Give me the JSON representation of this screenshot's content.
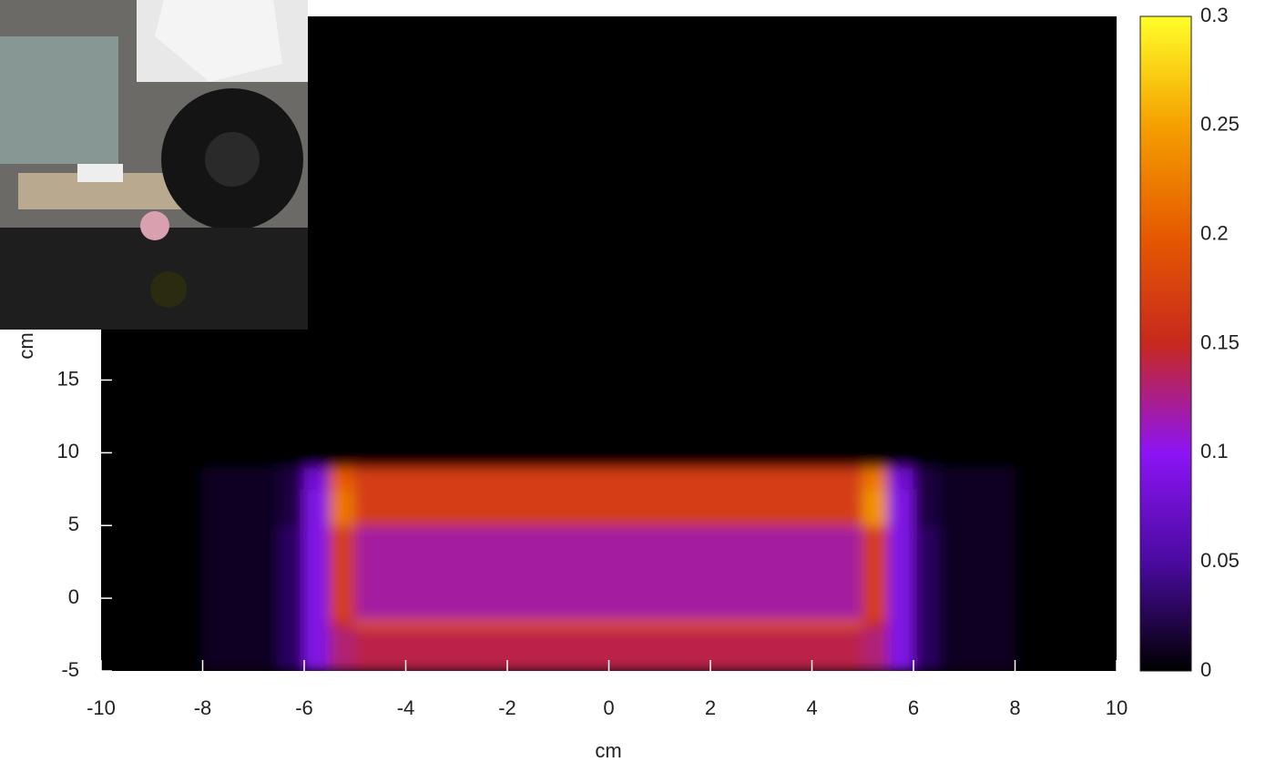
{
  "chart_data": {
    "type": "heatmap",
    "x_label": "cm",
    "y_label": "cm",
    "x": [
      -10,
      -8,
      -6.5,
      -6,
      -5.5,
      -5,
      -4,
      -3,
      -2,
      -1,
      0,
      1,
      2,
      3,
      4,
      5,
      5.5,
      6,
      6.5,
      8,
      10
    ],
    "y": [
      -5,
      -2,
      -1.5,
      5,
      7.5,
      9,
      40
    ],
    "values": [
      [
        0,
        0.01,
        0.03,
        0.09,
        0.13,
        0.14,
        0.14,
        0.14,
        0.14,
        0.14,
        0.14,
        0.14,
        0.14,
        0.14,
        0.14,
        0.13,
        0.09,
        0.03,
        0.01,
        0
      ],
      [
        0,
        0.01,
        0.03,
        0.09,
        0.15,
        0.2,
        0.2,
        0.2,
        0.2,
        0.2,
        0.2,
        0.2,
        0.2,
        0.2,
        0.2,
        0.15,
        0.09,
        0.03,
        0.01,
        0
      ],
      [
        0,
        0.01,
        0.03,
        0.09,
        0.17,
        0.12,
        0.12,
        0.12,
        0.12,
        0.12,
        0.12,
        0.12,
        0.12,
        0.12,
        0.12,
        0.17,
        0.09,
        0.03,
        0.01,
        0
      ],
      [
        0,
        0.01,
        0.02,
        0.09,
        0.22,
        0.17,
        0.17,
        0.17,
        0.17,
        0.17,
        0.17,
        0.17,
        0.17,
        0.17,
        0.17,
        0.24,
        0.09,
        0.02,
        0.01,
        0
      ],
      [
        0,
        0.01,
        0.02,
        0.08,
        0.2,
        0.17,
        0.17,
        0.17,
        0.17,
        0.17,
        0.17,
        0.17,
        0.17,
        0.17,
        0.17,
        0.22,
        0.08,
        0.02,
        0.01,
        0
      ],
      [
        0,
        0,
        0,
        0,
        0,
        0,
        0,
        0,
        0,
        0,
        0,
        0,
        0,
        0,
        0,
        0,
        0,
        0,
        0,
        0
      ]
    ],
    "xlim": [
      -10,
      10
    ],
    "ylim": [
      -5,
      40
    ],
    "xticks": [
      -10,
      -8,
      -6,
      -4,
      -2,
      0,
      2,
      4,
      6,
      8,
      10
    ],
    "yticks": [
      -5,
      0,
      5,
      10,
      15
    ],
    "zlim": [
      0,
      0.3
    ],
    "zticks": [
      0,
      0.05,
      0.1,
      0.15,
      0.2,
      0.25,
      0.3
    ],
    "colormap": [
      "#000000",
      "#4a0aa0",
      "#8c14f5",
      "#c8281e",
      "#e65a00",
      "#f5a000",
      "#ffff28"
    ]
  }
}
